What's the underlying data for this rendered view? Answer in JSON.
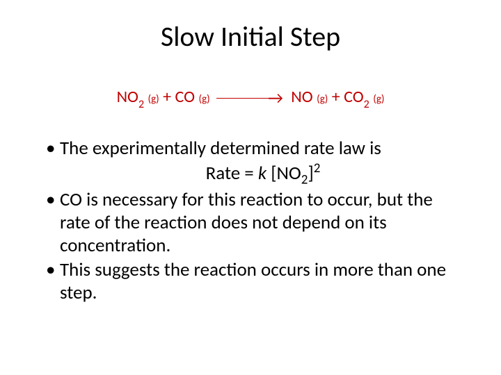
{
  "colors": {
    "title_color": "#000000",
    "equation_color": "#c00000",
    "body_color": "#000000",
    "background": "#ffffff"
  },
  "typography": {
    "title_fontsize": 40,
    "equation_fontsize": 24,
    "body_fontsize": 27,
    "font_family": "Calibri"
  },
  "title": "Slow Initial Step",
  "equation": {
    "reactant1_formula": "NO",
    "reactant1_sub": "2",
    "reactant1_phase": "(g)",
    "plus1": " + ",
    "reactant2_formula": "CO",
    "reactant2_phase": " (g)",
    "arrow_symbol": "→",
    "product1_formula": " NO",
    "product1_phase": " (g)",
    "plus2": " + ",
    "product2_formula": "CO",
    "product2_sub": "2",
    "product2_phase": " (g)"
  },
  "bullets": {
    "b1": "The experimentally  determined rate law is",
    "rate_prefix": "Rate = ",
    "rate_k": "k",
    "rate_open": " [NO",
    "rate_sub": "2",
    "rate_close": "]",
    "rate_sup": "2",
    "b2": "CO is necessary for this reaction to occur, but the rate of the reaction does not depend on its concentration.",
    "b3": "This suggests the reaction occurs in more than one step."
  }
}
